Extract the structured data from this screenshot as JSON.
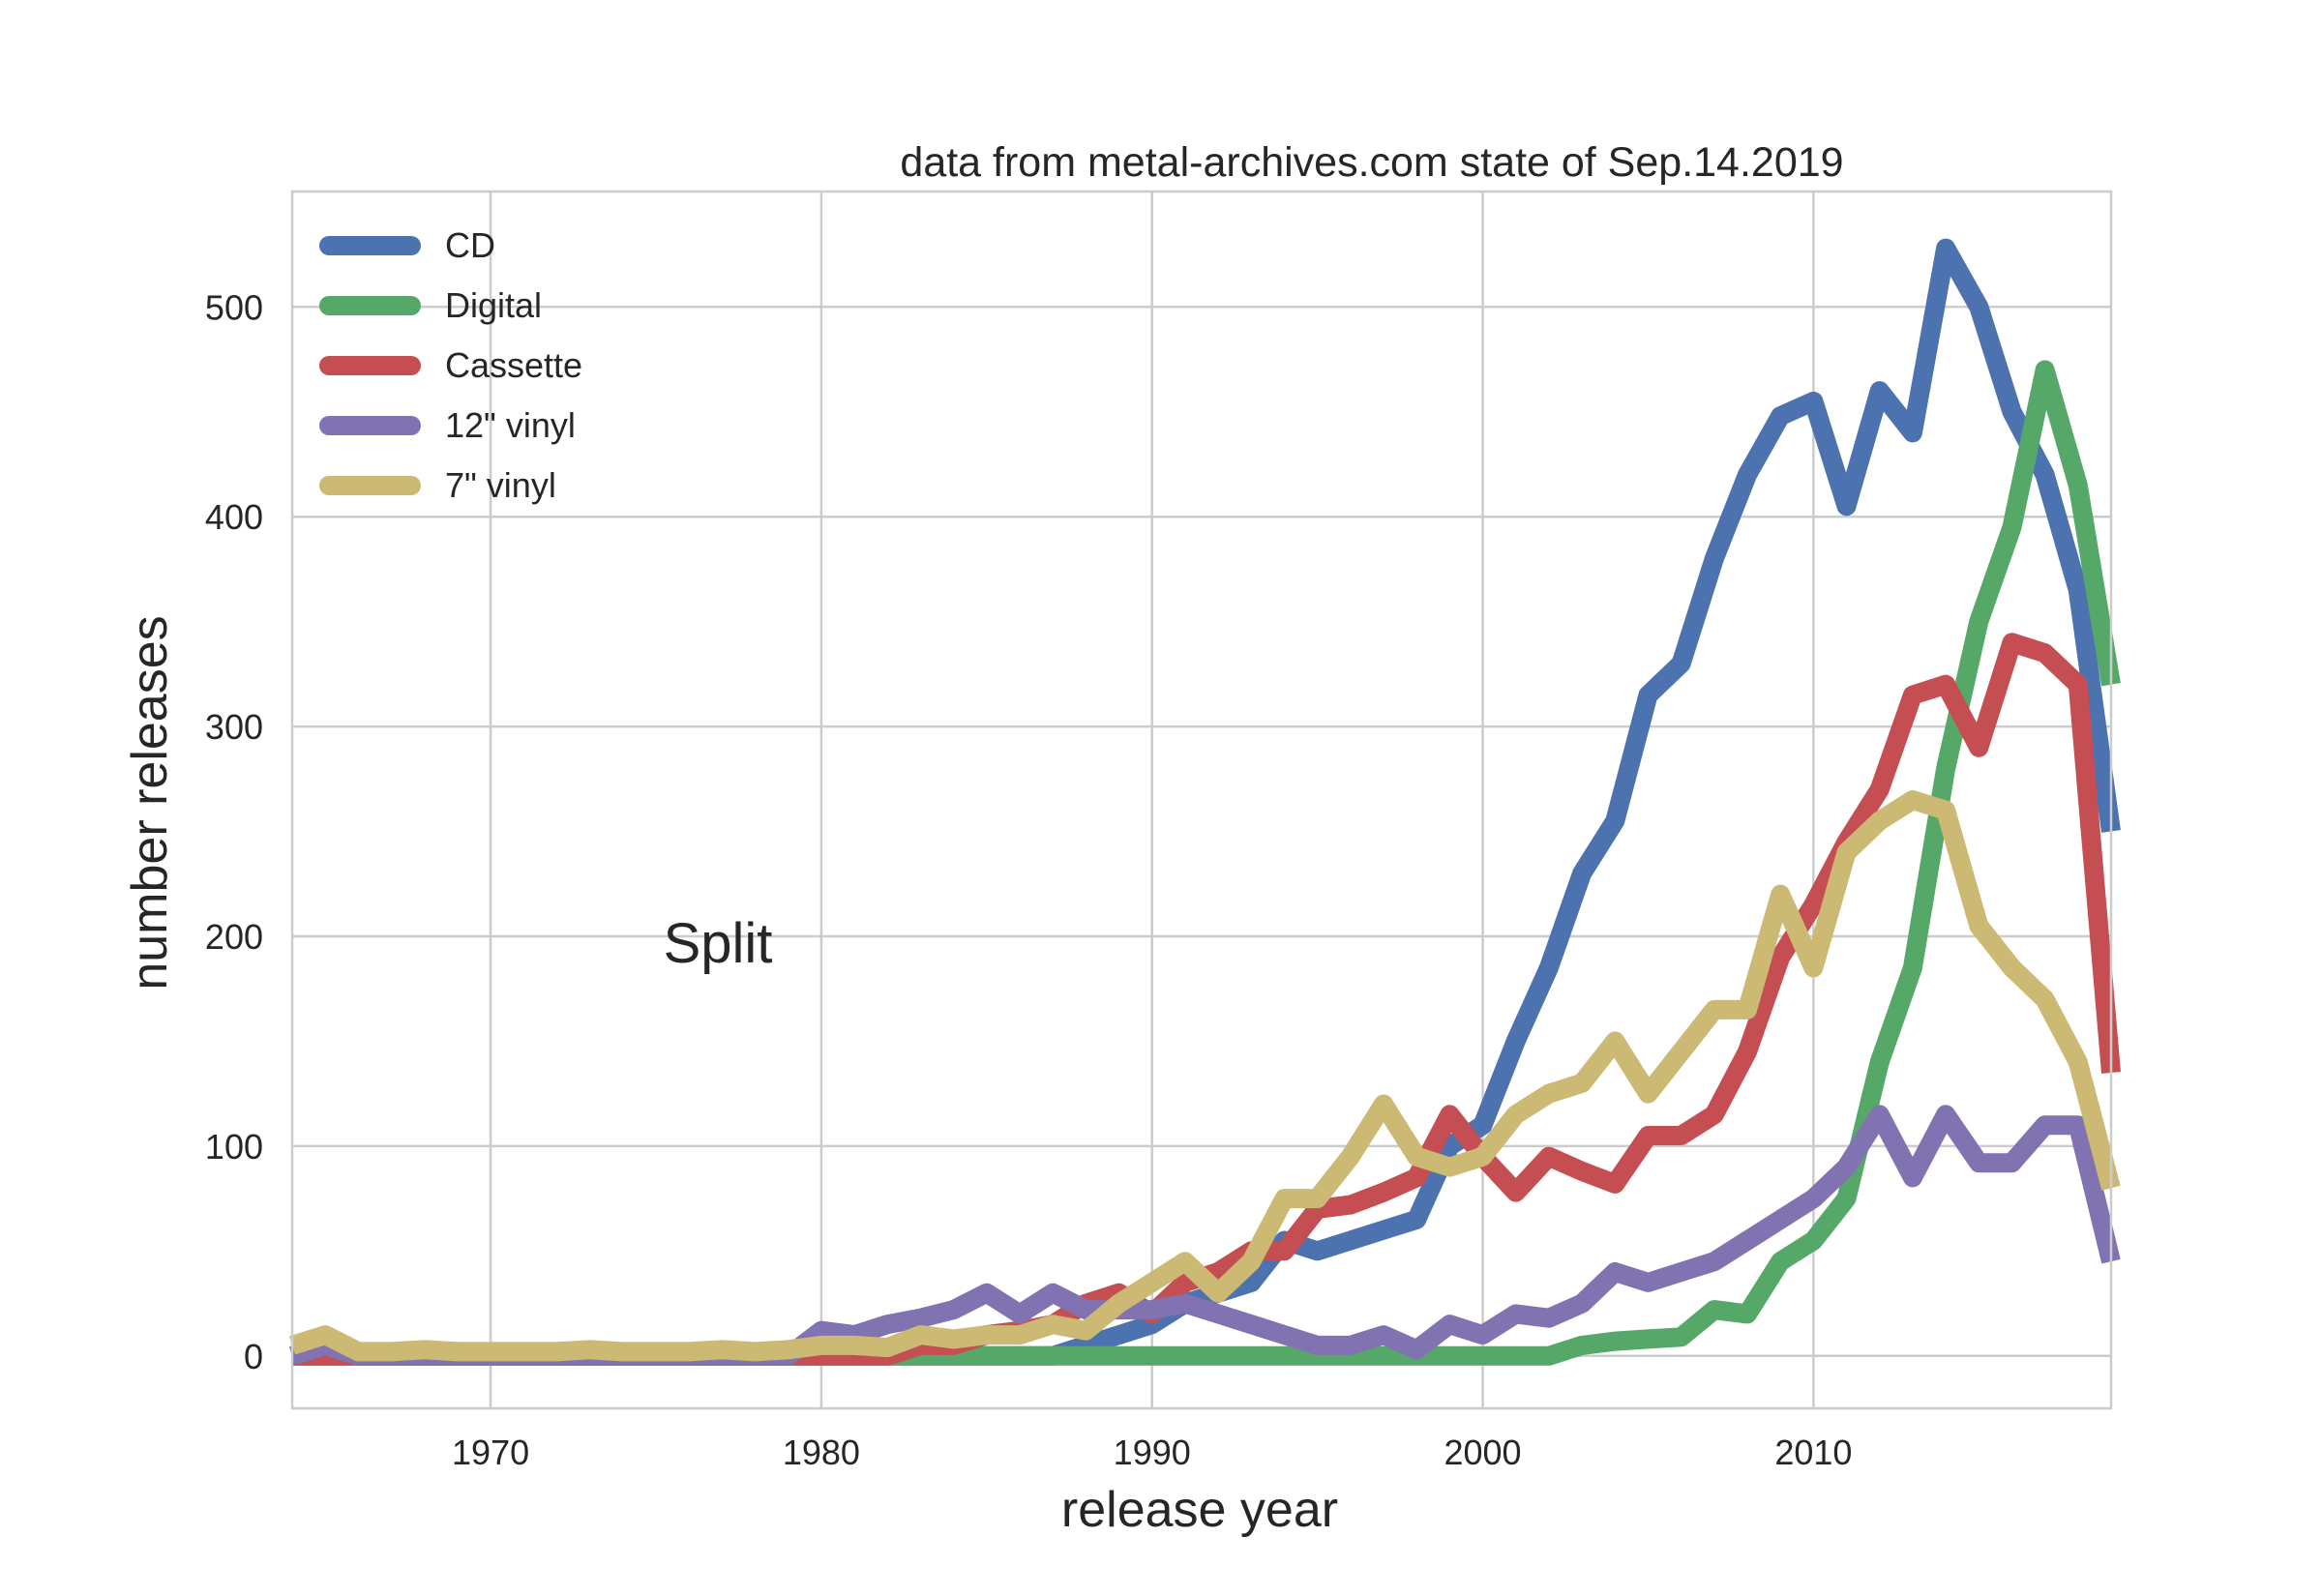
{
  "chart_data": {
    "type": "line",
    "title": "data from metal-archives.com state of Sep.14.2019",
    "annotation": "Split",
    "xlabel": "release year",
    "ylabel": "number releases",
    "xlim": [
      1964,
      2019
    ],
    "ylim": [
      -25,
      555
    ],
    "xticks": [
      1970,
      1980,
      1990,
      2000,
      2010
    ],
    "yticks": [
      0,
      100,
      200,
      300,
      400,
      500
    ],
    "grid": true,
    "legend_position": "top-left",
    "x": [
      1964,
      1965,
      1966,
      1967,
      1968,
      1969,
      1970,
      1971,
      1972,
      1973,
      1974,
      1975,
      1976,
      1977,
      1978,
      1979,
      1980,
      1981,
      1982,
      1983,
      1984,
      1985,
      1986,
      1987,
      1988,
      1989,
      1990,
      1991,
      1992,
      1993,
      1994,
      1995,
      1996,
      1997,
      1998,
      1999,
      2000,
      2001,
      2002,
      2003,
      2004,
      2005,
      2006,
      2007,
      2008,
      2009,
      2010,
      2011,
      2012,
      2013,
      2014,
      2015,
      2016,
      2017,
      2018,
      2019
    ],
    "series": [
      {
        "name": "CD",
        "color": "#4c72b0",
        "values": [
          0,
          0,
          0,
          0,
          0,
          0,
          0,
          0,
          0,
          0,
          0,
          0,
          0,
          0,
          0,
          0,
          0,
          0,
          0,
          0,
          0,
          0,
          0,
          0,
          5,
          10,
          15,
          25,
          30,
          35,
          55,
          50,
          55,
          60,
          65,
          100,
          110,
          150,
          185,
          230,
          255,
          315,
          330,
          380,
          420,
          448,
          455,
          405,
          460,
          440,
          528,
          500,
          450,
          420,
          365,
          250
        ]
      },
      {
        "name": "Digital",
        "color": "#55a868",
        "values": [
          0,
          0,
          0,
          0,
          0,
          0,
          0,
          0,
          0,
          0,
          0,
          0,
          0,
          0,
          0,
          0,
          0,
          0,
          0,
          0,
          0,
          0,
          0,
          0,
          0,
          0,
          0,
          0,
          0,
          0,
          0,
          0,
          0,
          0,
          0,
          0,
          0,
          0,
          0,
          5,
          7,
          8,
          9,
          22,
          20,
          45,
          55,
          75,
          140,
          185,
          280,
          350,
          395,
          470,
          415,
          320
        ]
      },
      {
        "name": "Cassette",
        "color": "#c44e52",
        "values": [
          0,
          0,
          0,
          0,
          0,
          0,
          0,
          0,
          0,
          0,
          0,
          0,
          0,
          0,
          0,
          0,
          0,
          0,
          0,
          5,
          5,
          10,
          12,
          15,
          25,
          30,
          20,
          35,
          40,
          50,
          50,
          70,
          72,
          78,
          85,
          115,
          95,
          78,
          95,
          88,
          82,
          105,
          105,
          115,
          145,
          190,
          215,
          245,
          270,
          315,
          320,
          290,
          340,
          335,
          320,
          135
        ]
      },
      {
        "name": "12\" vinyl",
        "color": "#8172b2",
        "values": [
          0,
          5,
          0,
          0,
          0,
          0,
          0,
          0,
          0,
          0,
          0,
          0,
          0,
          0,
          0,
          0,
          12,
          10,
          15,
          18,
          22,
          30,
          20,
          30,
          22,
          22,
          22,
          25,
          20,
          15,
          10,
          5,
          5,
          10,
          3,
          15,
          10,
          20,
          18,
          25,
          40,
          35,
          40,
          45,
          55,
          65,
          75,
          90,
          115,
          85,
          115,
          92,
          92,
          110,
          110,
          45
        ]
      },
      {
        "name": "7\" vinyl",
        "color": "#ccb974",
        "values": [
          5,
          10,
          2,
          2,
          3,
          2,
          2,
          2,
          2,
          3,
          2,
          2,
          2,
          3,
          2,
          3,
          5,
          5,
          4,
          10,
          8,
          10,
          10,
          15,
          12,
          25,
          35,
          45,
          30,
          45,
          75,
          75,
          95,
          120,
          95,
          90,
          95,
          115,
          125,
          130,
          150,
          125,
          145,
          165,
          165,
          220,
          185,
          240,
          255,
          265,
          260,
          205,
          185,
          170,
          140,
          80
        ]
      }
    ]
  }
}
